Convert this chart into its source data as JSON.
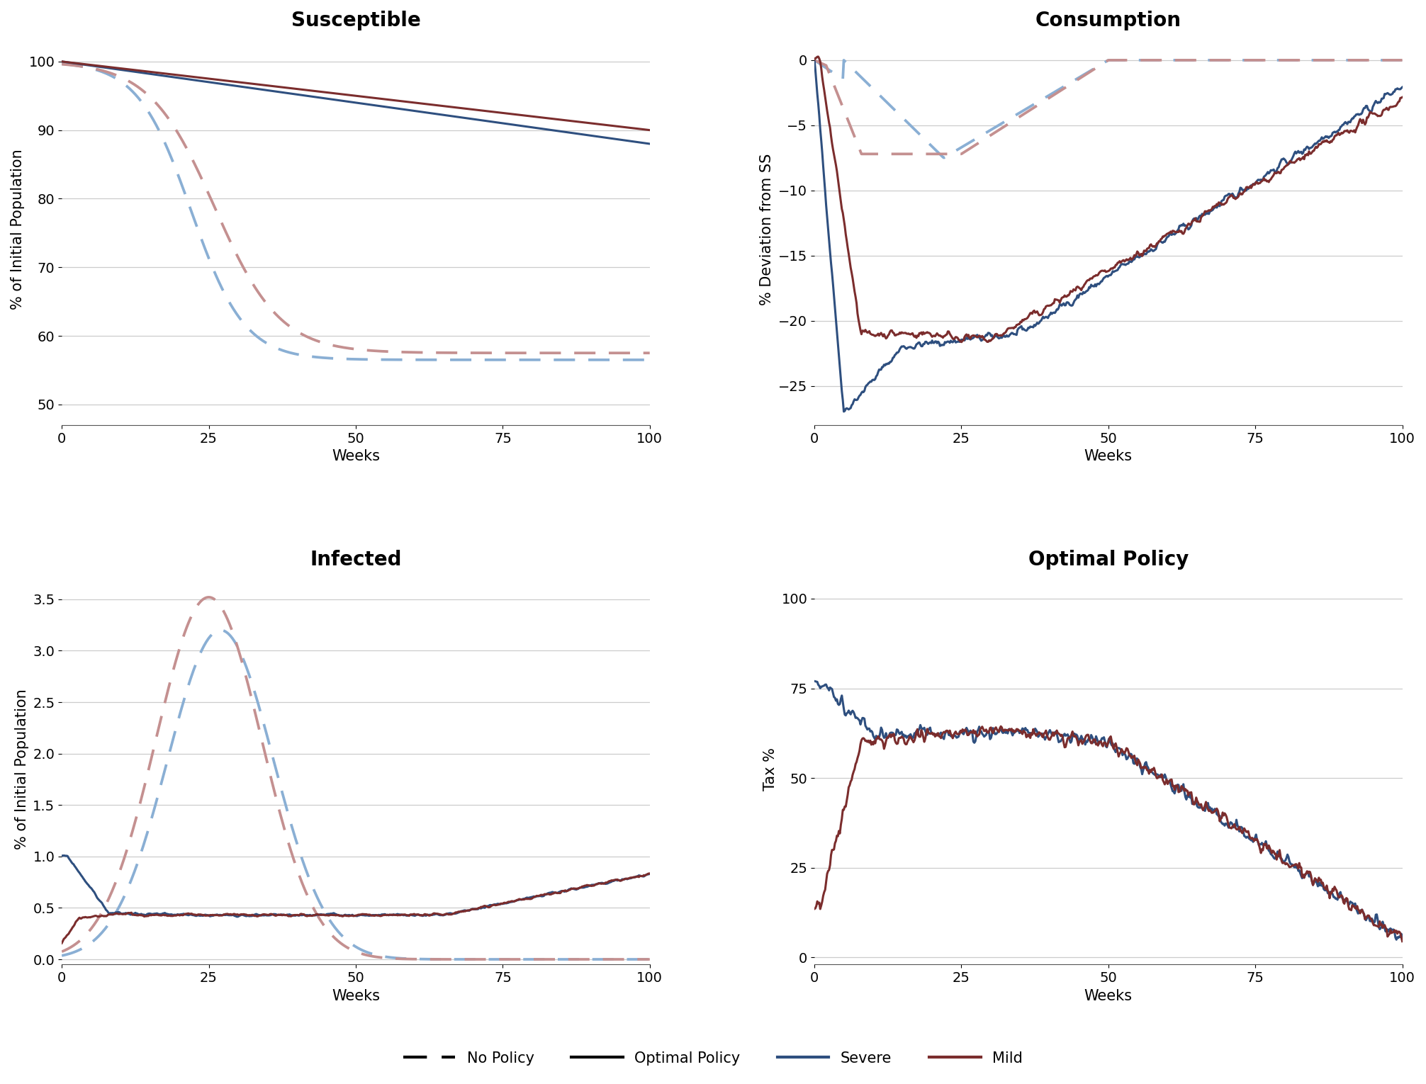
{
  "titles": [
    "Susceptible",
    "Consumption",
    "Infected",
    "Optimal Policy"
  ],
  "ylabels": [
    "% of Initial Population",
    "% Deviation from SS",
    "% of Initial Population",
    "Tax %"
  ],
  "xlabel": "Weeks",
  "colors": {
    "severe": "#2E4F7F",
    "mild": "#7B2D2D",
    "severe_no_policy": "#8aafd4",
    "mild_no_policy": "#c49090"
  },
  "line_width": 2.2,
  "background_color": "#ffffff",
  "grid_color": "#cccccc",
  "title_fontsize": 20,
  "label_fontsize": 15,
  "tick_fontsize": 14,
  "legend_fontsize": 15
}
